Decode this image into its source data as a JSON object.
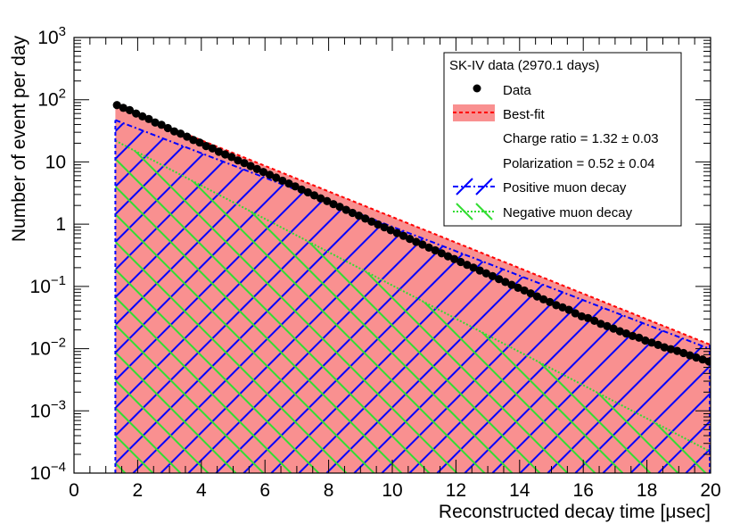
{
  "chart_data": {
    "type": "line",
    "xlabel": "Reconstructed decay time [μsec]",
    "ylabel": "Number of event per day",
    "xlim": [
      0,
      20
    ],
    "ylim": [
      0.0001,
      1000
    ],
    "yscale": "log",
    "grid": false,
    "x_ticks": [
      "0",
      "2",
      "4",
      "6",
      "8",
      "10",
      "12",
      "14",
      "16",
      "18",
      "20"
    ],
    "y_ticks": [
      {
        "value": 0.0001,
        "base": "10",
        "exp": "−4"
      },
      {
        "value": 0.001,
        "base": "10",
        "exp": "−3"
      },
      {
        "value": 0.01,
        "base": "10",
        "exp": "−2"
      },
      {
        "value": 0.1,
        "base": "10",
        "exp": "−1"
      },
      {
        "value": 1,
        "base": "1",
        "exp": ""
      },
      {
        "value": 10,
        "base": "10",
        "exp": ""
      },
      {
        "value": 100,
        "base": "10",
        "exp": "2"
      },
      {
        "value": 1000,
        "base": "10",
        "exp": "3"
      }
    ],
    "legend": {
      "position": "top-right",
      "header": "SK-IV data (2970.1 days)",
      "entries": [
        "Data",
        "Best-fit",
        "Charge ratio = 1.32 ± 0.03",
        "Polarization = 0.52 ± 0.04",
        "Positive muon decay",
        "Negative muon decay"
      ]
    },
    "colors": {
      "data": "#000000",
      "best_fit_fill": "#f99090",
      "best_fit_line": "#ff0000",
      "positive": "#0000ff",
      "negative": "#33dd33"
    },
    "series": [
      {
        "name": "Data",
        "x": [
          1.35,
          1.55,
          1.75,
          1.95,
          2.15,
          2.35,
          2.55,
          2.75,
          2.95,
          3.15,
          3.35,
          3.55,
          3.75,
          3.95,
          4.15,
          4.35,
          4.55,
          4.75,
          4.95,
          5.15,
          5.35,
          5.55,
          5.75,
          5.95,
          6.15,
          6.35,
          6.55,
          6.75,
          6.95,
          7.15,
          7.35,
          7.55,
          7.75,
          7.95,
          8.15,
          8.35,
          8.55,
          8.75,
          8.95,
          9.15,
          9.35,
          9.55,
          9.75,
          9.95,
          10.15,
          10.35,
          10.55,
          10.75,
          10.95,
          11.15,
          11.35,
          11.55,
          11.75,
          11.95,
          12.15,
          12.35,
          12.55,
          12.75,
          12.95,
          13.15,
          13.35,
          13.55,
          13.75,
          13.95,
          14.15,
          14.35,
          14.55,
          14.75,
          14.95,
          15.15,
          15.35,
          15.55,
          15.75,
          15.95,
          16.15,
          16.35,
          16.55,
          16.75,
          16.95,
          17.15,
          17.35,
          17.55,
          17.75,
          17.95,
          18.15,
          18.35,
          18.55,
          18.75,
          18.95,
          19.15,
          19.35,
          19.55,
          19.75,
          19.95
        ],
        "y": [
          82,
          74,
          68,
          60,
          54,
          49,
          43,
          39.5,
          35,
          31,
          28.5,
          25.5,
          22.5,
          20.5,
          18,
          16.5,
          14.6,
          13.2,
          12,
          10.6,
          9.6,
          8.6,
          7.7,
          6.9,
          6.2,
          5.6,
          5.0,
          4.5,
          4.05,
          3.6,
          3.25,
          2.9,
          2.6,
          2.35,
          2.1,
          1.9,
          1.7,
          1.52,
          1.37,
          1.23,
          1.1,
          0.99,
          0.89,
          0.8,
          0.72,
          0.65,
          0.58,
          0.52,
          0.47,
          0.42,
          0.38,
          0.34,
          0.305,
          0.275,
          0.247,
          0.222,
          0.2,
          0.18,
          0.162,
          0.146,
          0.131,
          0.118,
          0.106,
          0.095,
          0.086,
          0.077,
          0.069,
          0.062,
          0.056,
          0.05,
          0.046,
          0.042,
          0.037,
          0.033,
          0.031,
          0.028,
          0.025,
          0.023,
          0.021,
          0.019,
          0.0175,
          0.016,
          0.015,
          0.0135,
          0.0125,
          0.0115,
          0.0105,
          0.0098,
          0.0092,
          0.0085,
          0.0078,
          0.0072,
          0.0067,
          0.0062
        ]
      },
      {
        "name": "Best-fit",
        "x": [
          1.3,
          20
        ],
        "y": [
          80,
          0.0115
        ]
      },
      {
        "name": "Positive muon decay",
        "x": [
          1.3,
          20
        ],
        "y": [
          47,
          0.0098
        ]
      },
      {
        "name": "Negative muon decay",
        "x": [
          1.3,
          20
        ],
        "y": [
          22,
          0.00022
        ]
      }
    ]
  }
}
